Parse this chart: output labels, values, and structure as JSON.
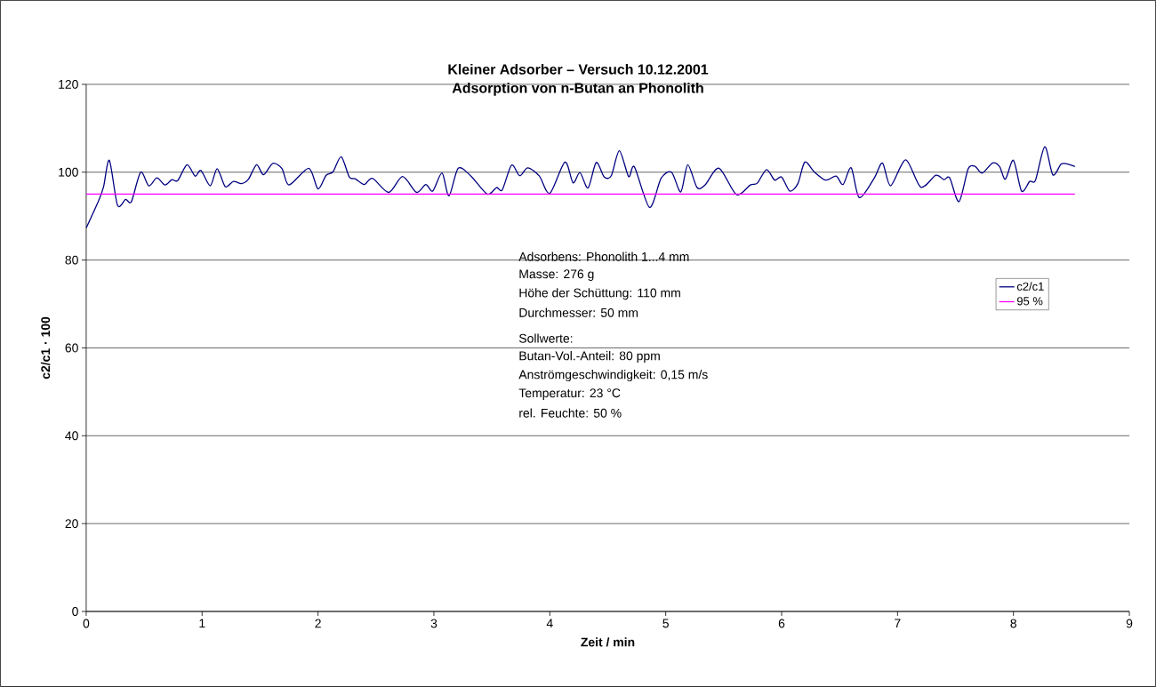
{
  "chart_data": {
    "type": "line",
    "title": "Kleiner Adsorber – Versuch 10.12.2001",
    "subtitle": "Adsorption von n-Butan an Phonolith",
    "xlabel": "Zeit / min",
    "ylabel": "c2/c1 · 100",
    "xlim": [
      0,
      9
    ],
    "xticks": [
      0,
      1,
      2,
      3,
      4,
      5,
      6,
      7,
      8,
      9
    ],
    "ylim": [
      0,
      120
    ],
    "yticks": [
      0,
      20,
      40,
      60,
      80,
      100,
      120
    ],
    "grid": "y",
    "legend": "right",
    "marker": "none",
    "line_style": "solid",
    "series": [
      {
        "name": "c2/c1",
        "color": "#000080",
        "x": [
          0.0,
          0.11,
          0.15,
          0.2,
          0.27,
          0.34,
          0.39,
          0.47,
          0.54,
          0.61,
          0.68,
          0.74,
          0.79,
          0.87,
          0.94,
          0.99,
          1.07,
          1.13,
          1.2,
          1.27,
          1.34,
          1.4,
          1.47,
          1.53,
          1.61,
          1.69,
          1.75,
          1.92,
          2.0,
          2.07,
          2.13,
          2.2,
          2.27,
          2.32,
          2.4,
          2.47,
          2.61,
          2.73,
          2.85,
          2.93,
          2.99,
          3.07,
          3.13,
          3.21,
          3.32,
          3.46,
          3.54,
          3.59,
          3.67,
          3.74,
          3.81,
          3.91,
          4.0,
          4.13,
          4.2,
          4.26,
          4.33,
          4.4,
          4.47,
          4.53,
          4.6,
          4.68,
          4.73,
          4.86,
          4.96,
          5.05,
          5.13,
          5.19,
          5.27,
          5.34,
          5.46,
          5.61,
          5.73,
          5.79,
          5.87,
          5.94,
          6.0,
          6.07,
          6.14,
          6.2,
          6.28,
          6.38,
          6.47,
          6.53,
          6.6,
          6.67,
          6.8,
          6.87,
          6.94,
          7.07,
          7.2,
          7.33,
          7.4,
          7.45,
          7.53,
          7.61,
          7.67,
          7.73,
          7.82,
          7.88,
          7.93,
          8.0,
          8.07,
          8.14,
          8.19,
          8.27,
          8.34,
          8.41,
          8.46,
          8.53
        ],
        "values": [
          87.3,
          93.7,
          96.7,
          102.7,
          92.5,
          93.8,
          93.3,
          100.0,
          96.9,
          98.7,
          97.1,
          98.3,
          98.1,
          101.7,
          99.1,
          100.4,
          96.9,
          100.8,
          96.7,
          97.9,
          97.4,
          98.4,
          101.7,
          99.4,
          102.0,
          100.8,
          97.1,
          100.9,
          96.2,
          99.3,
          100.1,
          103.5,
          98.9,
          98.5,
          97.2,
          98.6,
          95.4,
          99.0,
          95.4,
          97.2,
          95.7,
          99.8,
          94.6,
          100.9,
          99.1,
          95.0,
          96.5,
          96.0,
          101.6,
          99.2,
          101.0,
          99.1,
          95.2,
          102.3,
          97.6,
          99.9,
          96.4,
          102.2,
          98.9,
          99.2,
          104.9,
          99.0,
          101.2,
          92.0,
          98.6,
          100.0,
          95.5,
          101.7,
          96.5,
          97.1,
          100.9,
          94.9,
          97.1,
          97.5,
          100.6,
          98.2,
          98.9,
          95.7,
          97.4,
          102.3,
          100.1,
          98.2,
          99.1,
          97.2,
          101.0,
          94.2,
          98.7,
          102.1,
          96.9,
          102.8,
          96.6,
          99.3,
          98.3,
          98.7,
          93.3,
          100.8,
          101.3,
          99.8,
          102.1,
          101.3,
          98.4,
          102.7,
          95.7,
          97.9,
          98.2,
          105.8,
          99.4,
          101.8,
          101.9,
          101.3
        ]
      },
      {
        "name": "95 %",
        "color": "#ff00ff",
        "x": [
          0,
          8.53
        ],
        "values": [
          95,
          95
        ]
      }
    ],
    "annotations": [
      "Adsorbens: Phonolith 1...4 mm",
      "Masse: 276 g",
      "Höhe der Schüttung: 110 mm",
      "Durchmesser: 50 mm",
      "Sollwerte:",
      "Butan-Vol.-Anteil: 80 ppm",
      "Anströmgeschwindigkeit: 0,15 m/s",
      "Temperatur: 23 °C",
      "rel. Feuchte: 50 %"
    ]
  }
}
